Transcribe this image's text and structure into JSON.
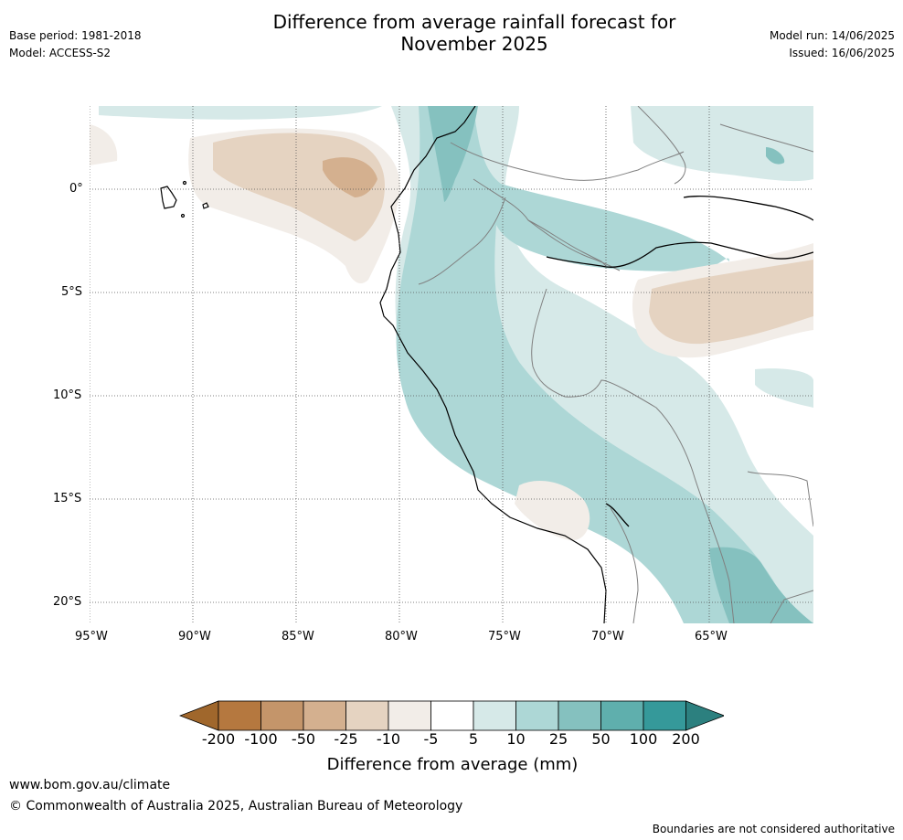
{
  "header": {
    "title_line1": "Difference from average rainfall forecast for",
    "title_line2": "November 2025",
    "base_period": "Base period: 1981-2018",
    "model": "Model: ACCESS-S2",
    "model_run": "Model run: 14/06/2025",
    "issued": "Issued: 16/06/2025"
  },
  "map": {
    "lat_labels": [
      "0°",
      "5°S",
      "10°S",
      "15°S",
      "20°S"
    ],
    "lon_labels": [
      "95°W",
      "90°W",
      "85°W",
      "80°W",
      "75°W",
      "70°W",
      "65°W"
    ]
  },
  "colorbar": {
    "ticks": [
      "-200",
      "-100",
      "-50",
      "-25",
      "-10",
      "-5",
      "5",
      "10",
      "25",
      "50",
      "100",
      "200"
    ],
    "colors": [
      "#a0672c",
      "#b5783f",
      "#c4956a",
      "#d4b08f",
      "#e5d3c1",
      "#f2ede8",
      "#ffffff",
      "#d6e9e8",
      "#add7d6",
      "#85c1bf",
      "#5fafad",
      "#35999a",
      "#2c807f"
    ],
    "label": "Difference from average (mm)"
  },
  "footer": {
    "url": "www.bom.gov.au/climate",
    "copyright": "© Commonwealth of Australia 2025, Australian Bureau of Meteorology",
    "disclaimer": "Boundaries are not considered authoritative"
  }
}
